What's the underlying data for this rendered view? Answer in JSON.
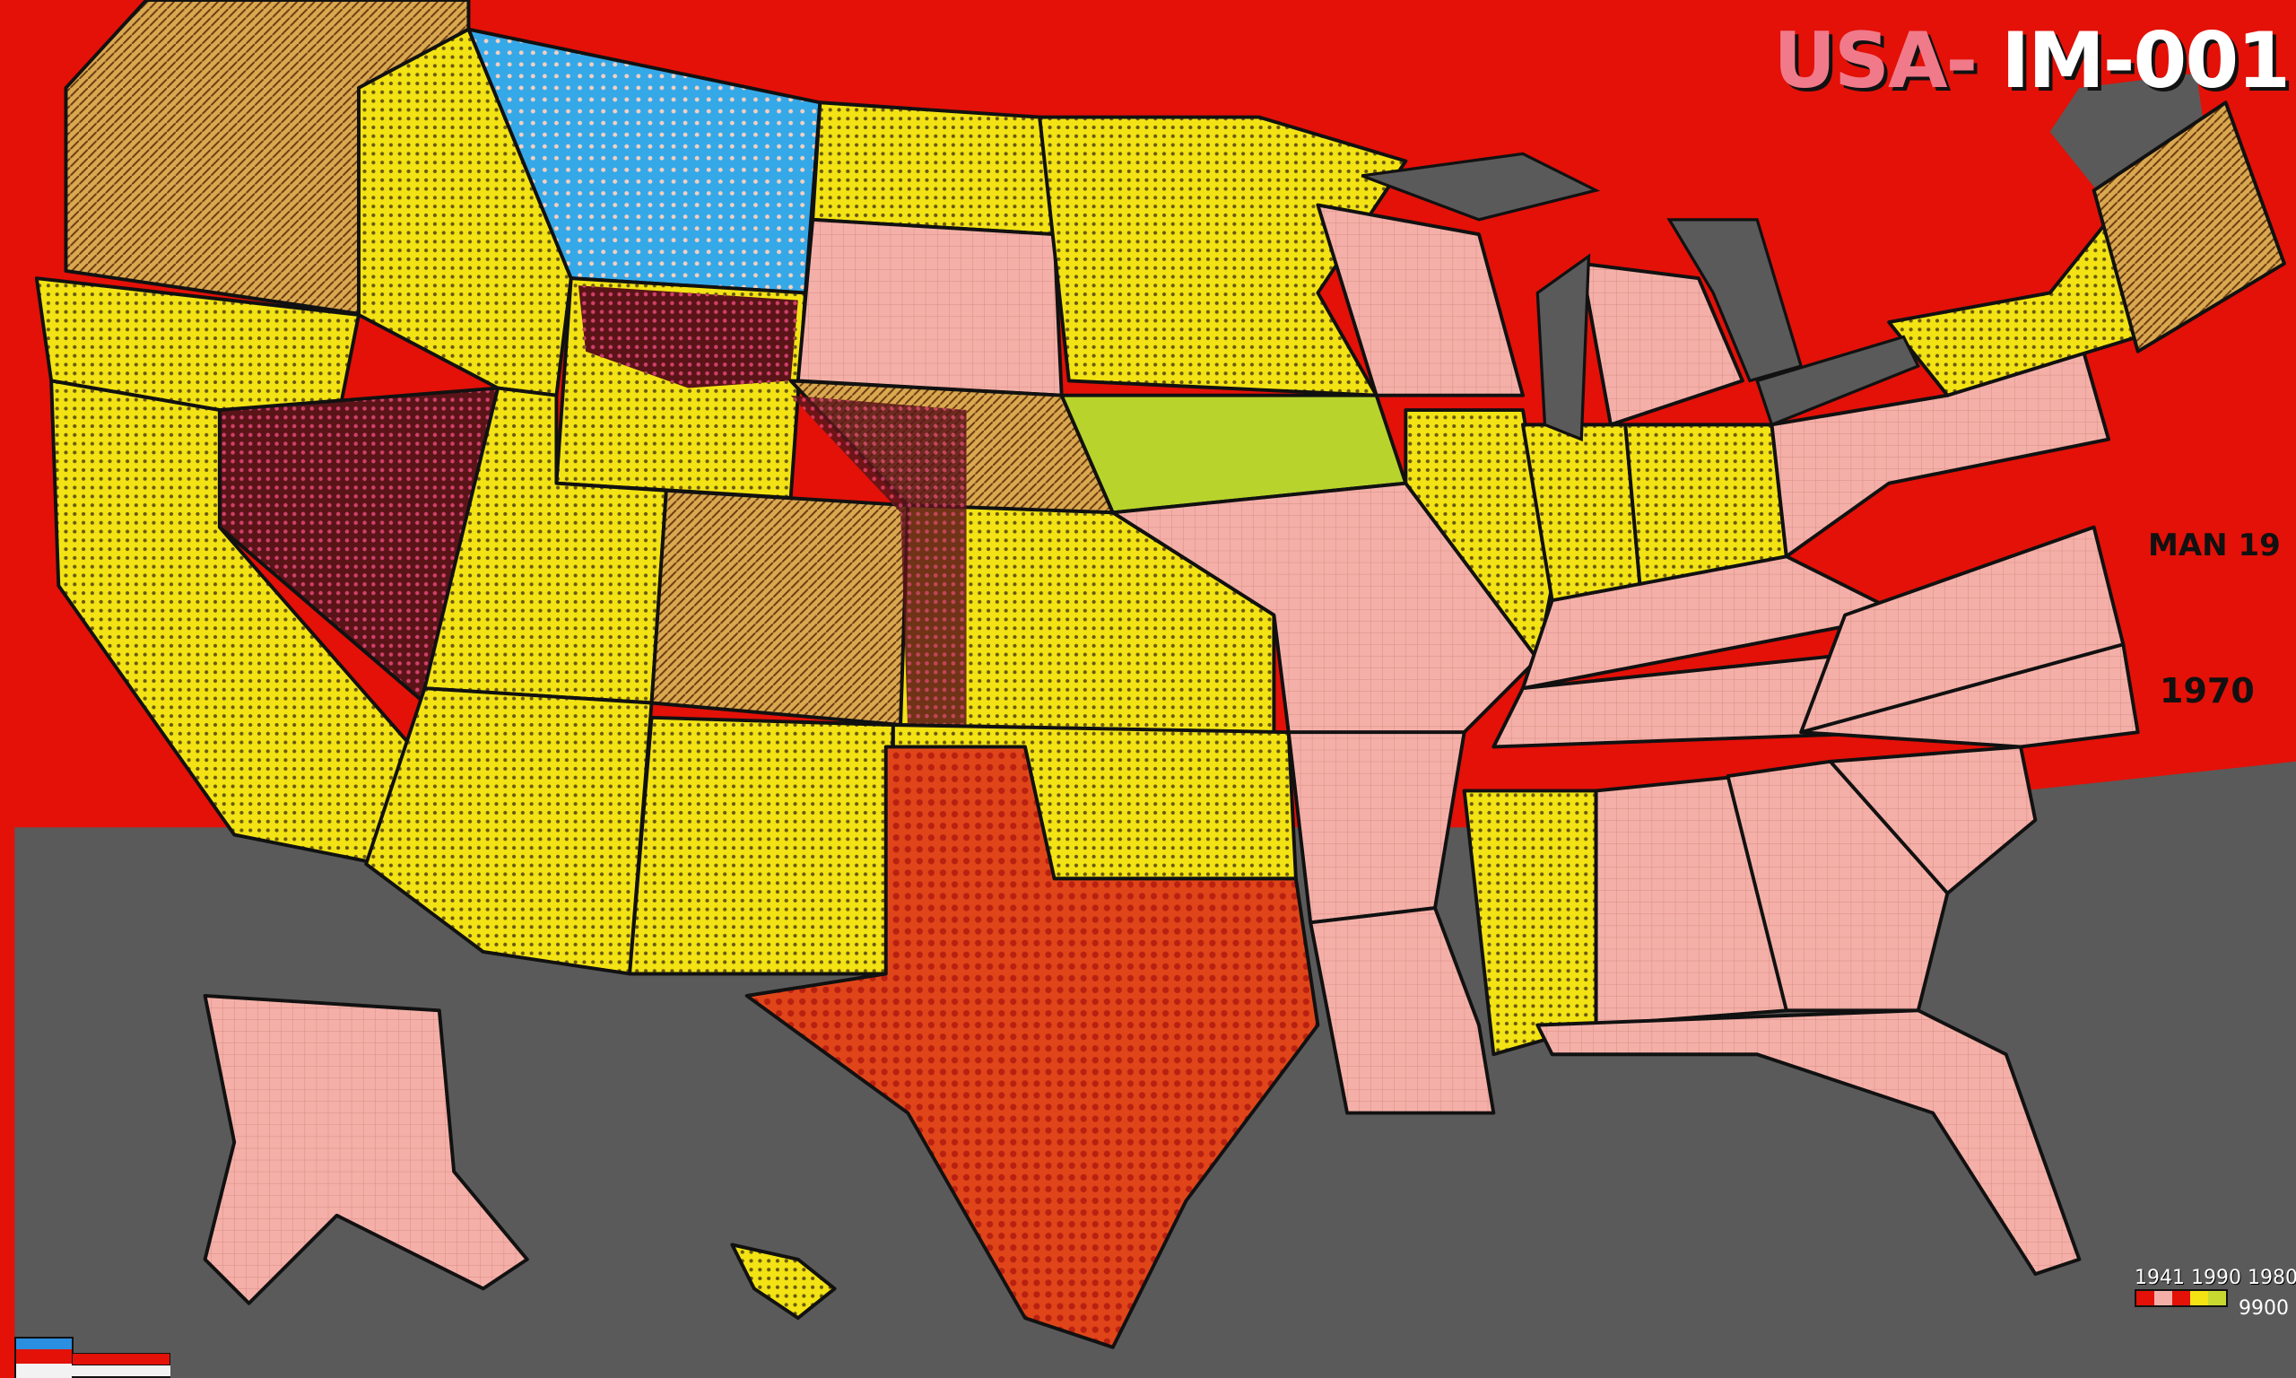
{
  "map": {
    "title_prefix": "USA-",
    "title_suffix": "IM-001",
    "annotations": [
      "MAN 19",
      "1970"
    ],
    "legend": {
      "tick_labels": [
        "1941",
        "1990",
        "1980"
      ],
      "end_label": "9900",
      "colors": [
        "#e31108",
        "#f4b0a8",
        "#e31108",
        "#f3e314",
        "#c9d830"
      ]
    },
    "colors": {
      "land_background": "#e31108",
      "water": "#5a5a5a",
      "pink": "#f4b0a8",
      "yellow": "#f3e314",
      "blue": "#35a8e8",
      "maroon": "#5a1418",
      "hatched_brown": "#c99a3a",
      "orange_red": "#e0451a",
      "lime": "#b8d42c"
    }
  }
}
